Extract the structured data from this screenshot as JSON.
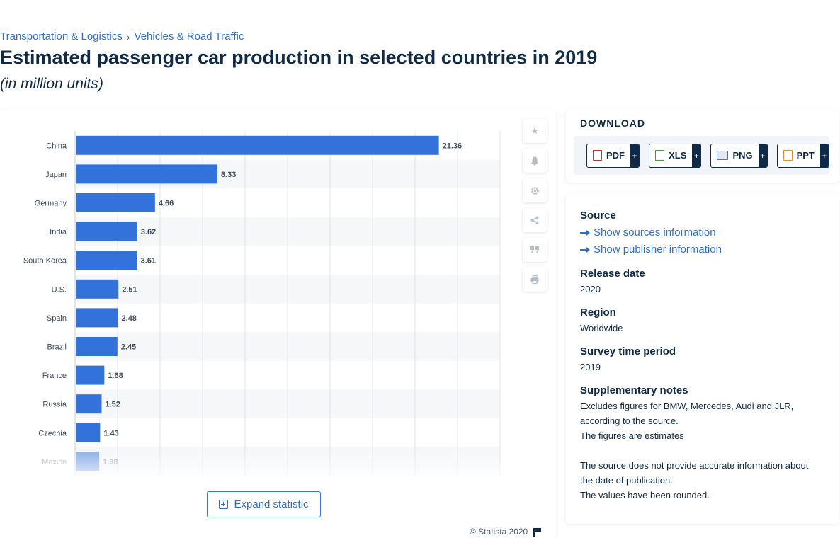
{
  "breadcrumb": {
    "items": [
      "Transportation & Logistics",
      "Vehicles & Road Traffic"
    ],
    "separator": "›"
  },
  "header": {
    "title": "Estimated passenger car production in selected countries in 2019",
    "subtitle": "(in million units)"
  },
  "chart_data": {
    "type": "bar",
    "orientation": "horizontal",
    "categories": [
      "China",
      "Japan",
      "Germany",
      "India",
      "South Korea",
      "U.S.",
      "Spain",
      "Brazil",
      "France",
      "Russia",
      "Czechia",
      "Mexico"
    ],
    "values": [
      21.36,
      8.33,
      4.66,
      3.62,
      3.61,
      2.51,
      2.48,
      2.45,
      1.68,
      1.52,
      1.43,
      1.38
    ],
    "value_labels": [
      "21.36",
      "8.33",
      "4.66",
      "3.62",
      "3.61",
      "2.51",
      "2.48",
      "2.45",
      "1.68",
      "1.52",
      "1.43",
      "1.38"
    ],
    "xlim": [
      0,
      25
    ],
    "grid": true,
    "bar_color": "#3472db",
    "title": "",
    "xlabel": "",
    "ylabel": ""
  },
  "actions": {
    "expand_label": "Expand statistic"
  },
  "footer": {
    "copyright": "© Statista 2020"
  },
  "download": {
    "title": "DOWNLOAD",
    "buttons": [
      {
        "label": "PDF",
        "icon": "pdf-file-icon"
      },
      {
        "label": "XLS",
        "icon": "xls-file-icon"
      },
      {
        "label": "PNG",
        "icon": "png-file-icon"
      },
      {
        "label": "PPT",
        "icon": "ppt-file-icon"
      }
    ],
    "plus": "+"
  },
  "meta": {
    "source_heading": "Source",
    "show_sources": "Show sources information",
    "show_publisher": "Show publisher information",
    "release_heading": "Release date",
    "release_value": "2020",
    "region_heading": "Region",
    "region_value": "Worldwide",
    "survey_heading": "Survey time period",
    "survey_value": "2019",
    "notes_heading": "Supplementary notes",
    "notes_line1": "Excludes figures for BMW, Mercedes, Audi and JLR, according to the source.",
    "notes_line2": "The figures are estimates",
    "notes_line3": "The source does not provide accurate information about the date of publication.",
    "notes_line4": "The values have been rounded."
  }
}
